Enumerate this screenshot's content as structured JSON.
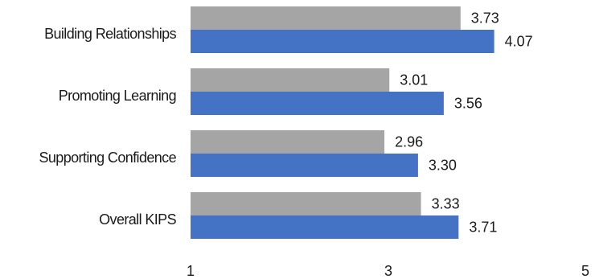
{
  "chart_data": {
    "type": "bar",
    "orientation": "horizontal",
    "categories": [
      "Building Relationships",
      "Promoting Learning",
      "Supporting Confidence",
      "Overall KIPS"
    ],
    "series": [
      {
        "values": [
          3.73,
          3.01,
          2.96,
          3.33
        ],
        "color": "#a5a5a5"
      },
      {
        "values": [
          4.07,
          3.56,
          3.3,
          3.71
        ],
        "color": "#4472c4"
      }
    ],
    "value_labels": [
      [
        "3.73",
        "3.01",
        "2.96",
        "3.33"
      ],
      [
        "4.07",
        "3.56",
        "3.30",
        "3.71"
      ]
    ],
    "xlim": [
      1,
      5
    ],
    "xticks": [
      1,
      3,
      5
    ],
    "xtick_labels": [
      "1",
      "3",
      "5"
    ],
    "title": "",
    "xlabel": "",
    "ylabel": "",
    "grid": false,
    "legend": false
  }
}
